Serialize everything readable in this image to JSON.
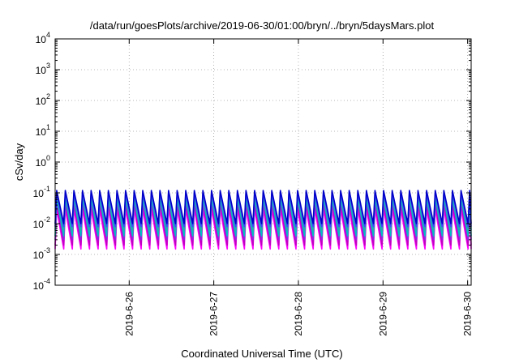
{
  "chart_data": {
    "type": "line",
    "title": "/data/run/goesPlots/archive/2019-06-30/01:00/bryn/../bryn/5daysMars.plot",
    "xlabel": "Coordinated Universal Time (UTC)",
    "ylabel": "cSv/day",
    "yscale": "log",
    "ylim": [
      0.0001,
      10000
    ],
    "xlim": [
      "2019-06-25 03:00",
      "2019-06-30 01:00"
    ],
    "y_ticks": [
      {
        "base": "10",
        "exp": "-4"
      },
      {
        "base": "10",
        "exp": "-3"
      },
      {
        "base": "10",
        "exp": "-2"
      },
      {
        "base": "10",
        "exp": "-1"
      },
      {
        "base": "10",
        "exp": "0"
      },
      {
        "base": "10",
        "exp": "1"
      },
      {
        "base": "10",
        "exp": "2"
      },
      {
        "base": "10",
        "exp": "3"
      },
      {
        "base": "10",
        "exp": "4"
      }
    ],
    "x_ticks": [
      {
        "label": "2019-6-26",
        "time": "2019-06-26 00:00"
      },
      {
        "label": "2019-6-27",
        "time": "2019-06-27 00:00"
      },
      {
        "label": "2019-6-28",
        "time": "2019-06-28 00:00"
      },
      {
        "label": "2019-6-29",
        "time": "2019-06-29 00:00"
      },
      {
        "label": "2019-6-30",
        "time": "2019-06-30 00:00"
      }
    ],
    "grid": true,
    "series_colors": [
      "#ff00ff",
      "#c000c0",
      "#8a2be2",
      "#00c0c0",
      "#20b2aa",
      "#4040ff",
      "#0000c8"
    ],
    "sawtooth": {
      "period_hours": 2.44,
      "series_peak": [
        0.03,
        0.045,
        0.06,
        0.07,
        0.085,
        0.1,
        0.12
      ],
      "series_trough": [
        0.0015,
        0.002,
        0.003,
        0.004,
        0.006,
        0.008,
        0.01
      ]
    }
  }
}
